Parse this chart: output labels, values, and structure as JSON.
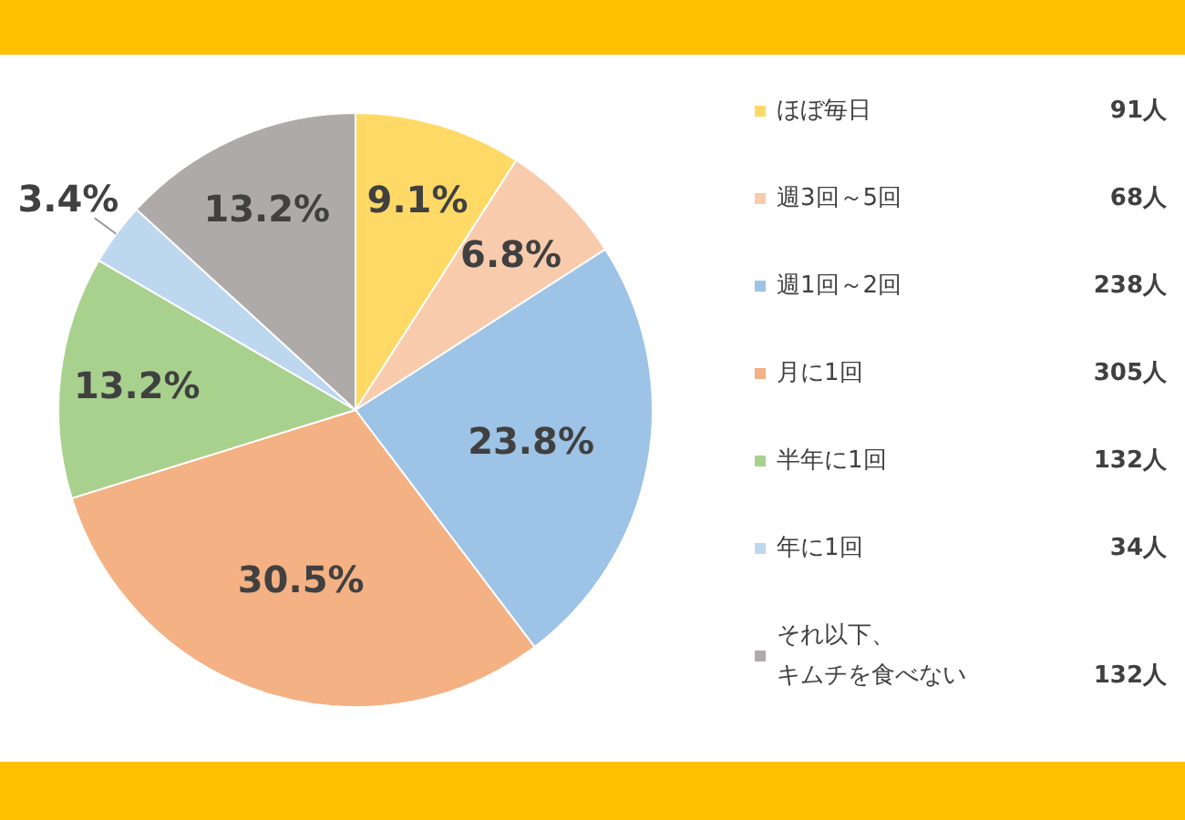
{
  "chart_data": {
    "type": "pie",
    "categories": [
      "ほぼ毎日",
      "週3回～5回",
      "週1回～2回",
      "月に1回",
      "半年に1回",
      "年に1回",
      "それ以下、キムチを食べない"
    ],
    "values": [
      9.1,
      6.8,
      23.8,
      30.5,
      13.2,
      3.4,
      13.2
    ],
    "colors": [
      "#ffd966",
      "#f8cbad",
      "#9dc3e6",
      "#f4b183",
      "#a9d18e",
      "#bdd7ee",
      "#aeaaaa"
    ],
    "value_labels": [
      "9.1%",
      "6.8%",
      "23.8%",
      "30.5%",
      "13.2%",
      "3.4%",
      "13.2%"
    ],
    "annotations": [
      "91人",
      "68人",
      "238人",
      "305人",
      "132人",
      "34人",
      "132人"
    ],
    "legend": "right"
  }
}
